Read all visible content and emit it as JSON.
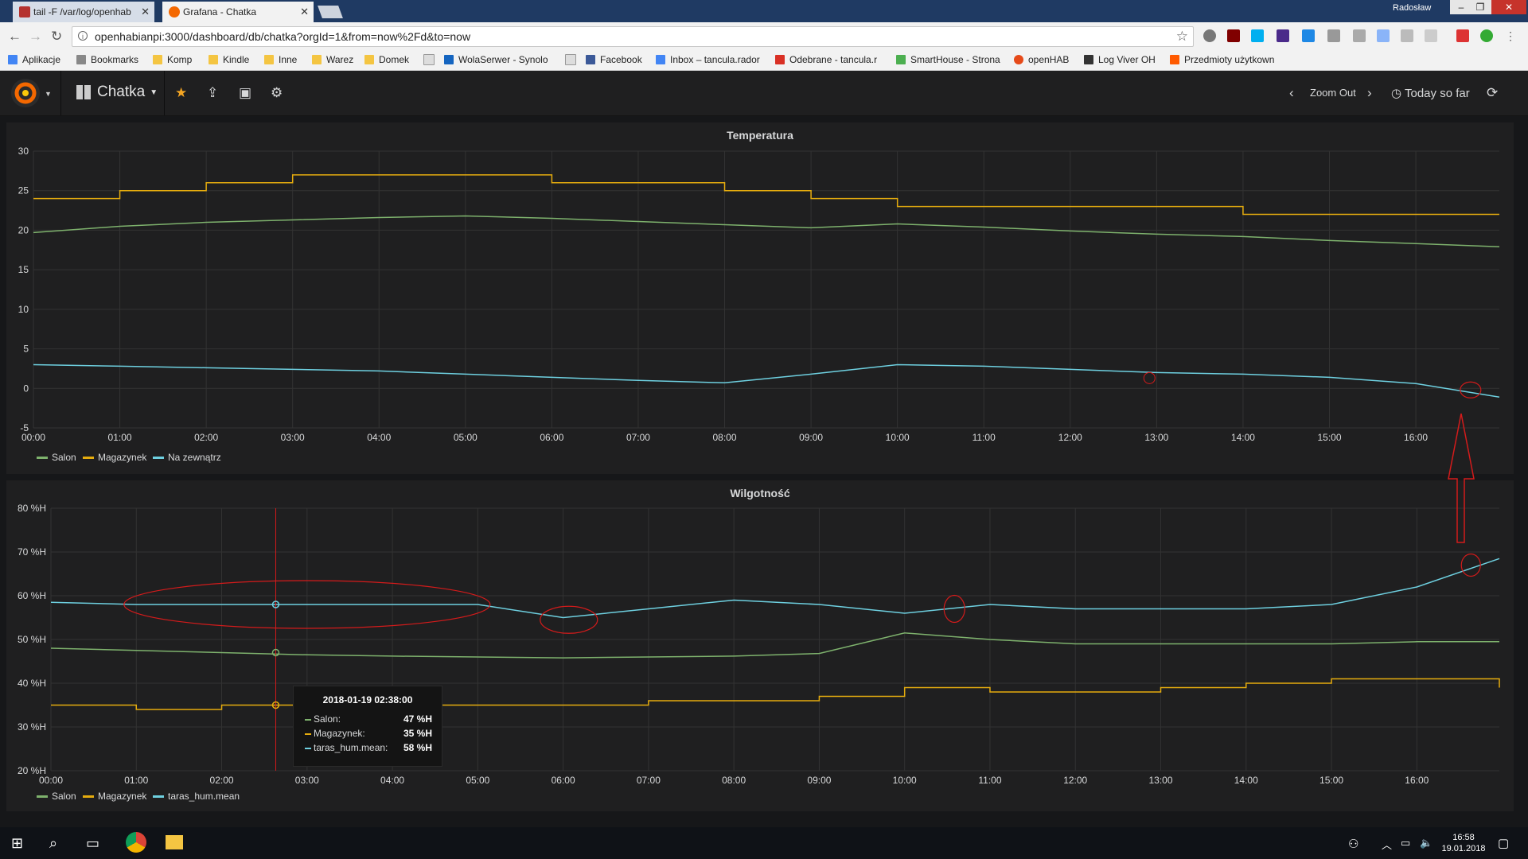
{
  "browser": {
    "tabs": [
      {
        "title": "tail -F /var/log/openhab",
        "active": false
      },
      {
        "title": "Grafana - Chatka",
        "active": true
      }
    ],
    "window_user": "Radosław",
    "url": "openhabianpi:3000/dashboard/db/chatka?orgId=1&from=now%2Fd&to=now",
    "bookmarks": [
      "Aplikacje",
      "Bookmarks",
      "Komp",
      "Kindle",
      "Inne",
      "Warez",
      "Domek",
      "",
      "WolaSerwer - Synolo",
      "",
      "Facebook",
      "Inbox – tancula.rador",
      "Odebrane - tancula.r",
      "SmartHouse - Strona",
      "openHAB",
      "Log Viver OH",
      "Przedmioty użytkown"
    ]
  },
  "grafana": {
    "dashboard_title": "Chatka",
    "zoom_out": "Zoom Out",
    "time_range": "Today so far"
  },
  "colors": {
    "salon": "#7eb26d",
    "magazynek": "#e5ac0e",
    "outside": "#6ed0e0",
    "annotation": "#d41b1b"
  },
  "panels": {
    "temperature": {
      "title": "Temperatura",
      "legend": [
        "Salon",
        "Magazynek",
        "Na zewnątrz"
      ]
    },
    "humidity": {
      "title": "Wilgotność",
      "legend": [
        "Salon",
        "Magazynek",
        "taras_hum.mean"
      ],
      "tooltip": {
        "time": "2018-01-19 02:38:00",
        "rows": [
          {
            "label": "Salon:",
            "value": "47 %H"
          },
          {
            "label": "Magazynek:",
            "value": "35 %H"
          },
          {
            "label": "taras_hum.mean:",
            "value": "58 %H"
          }
        ]
      }
    }
  },
  "chart_data": [
    {
      "type": "line",
      "title": "Temperatura",
      "x": [
        "00:00",
        "01:00",
        "02:00",
        "03:00",
        "04:00",
        "05:00",
        "06:00",
        "07:00",
        "08:00",
        "09:00",
        "10:00",
        "11:00",
        "12:00",
        "13:00",
        "14:00",
        "15:00",
        "16:00",
        "16:58"
      ],
      "x_ticks": [
        "00:00",
        "01:00",
        "02:00",
        "03:00",
        "04:00",
        "05:00",
        "06:00",
        "07:00",
        "08:00",
        "09:00",
        "10:00",
        "11:00",
        "12:00",
        "13:00",
        "14:00",
        "15:00",
        "16:00"
      ],
      "y_ticks": [
        "30",
        "25",
        "20",
        "15",
        "10",
        "5",
        "0",
        "-5"
      ],
      "ylim": [
        -5,
        30
      ],
      "series": [
        {
          "name": "Salon",
          "values": [
            19.7,
            20.5,
            21.0,
            21.3,
            21.6,
            21.8,
            21.5,
            21.1,
            20.7,
            20.3,
            20.8,
            20.4,
            19.9,
            19.5,
            19.2,
            18.7,
            18.3,
            17.9
          ]
        },
        {
          "name": "Magazynek",
          "values": [
            24,
            25,
            26,
            27,
            27,
            27,
            26,
            26,
            25,
            24,
            23,
            23,
            23,
            23,
            22,
            22,
            22,
            22
          ]
        },
        {
          "name": "Na zewnątrz",
          "values": [
            3.0,
            2.8,
            2.6,
            2.4,
            2.2,
            1.8,
            1.4,
            1.0,
            0.7,
            1.8,
            3.0,
            2.8,
            2.4,
            2.0,
            1.8,
            1.4,
            0.6,
            -1.1
          ]
        }
      ]
    },
    {
      "type": "line",
      "title": "Wilgotność",
      "x": [
        "00:00",
        "01:00",
        "02:00",
        "03:00",
        "04:00",
        "05:00",
        "06:00",
        "07:00",
        "08:00",
        "09:00",
        "10:00",
        "11:00",
        "12:00",
        "13:00",
        "14:00",
        "15:00",
        "16:00",
        "16:58"
      ],
      "x_ticks": [
        "00:00",
        "01:00",
        "02:00",
        "03:00",
        "04:00",
        "05:00",
        "06:00",
        "07:00",
        "08:00",
        "09:00",
        "10:00",
        "11:00",
        "12:00",
        "13:00",
        "14:00",
        "15:00",
        "16:00"
      ],
      "y_ticks": [
        "80 %H",
        "70 %H",
        "60 %H",
        "50 %H",
        "40 %H",
        "30 %H",
        "20 %H"
      ],
      "ylim": [
        20,
        80
      ],
      "series": [
        {
          "name": "Salon",
          "values": [
            48,
            47.5,
            47,
            46.5,
            46.2,
            46,
            45.8,
            46,
            46.2,
            46.8,
            51.5,
            50,
            49,
            49,
            49,
            49,
            49.5,
            49.5
          ]
        },
        {
          "name": "Magazynek",
          "values": [
            35,
            34,
            35,
            35,
            35,
            35,
            35,
            36,
            36,
            37,
            39,
            38,
            38,
            39,
            40,
            41,
            41,
            39
          ]
        },
        {
          "name": "taras_hum.mean",
          "values": [
            58.5,
            58,
            58,
            58,
            58,
            58,
            55,
            57,
            59,
            58,
            56,
            58,
            57,
            57,
            57,
            58,
            62,
            68.5
          ]
        }
      ]
    }
  ]
}
